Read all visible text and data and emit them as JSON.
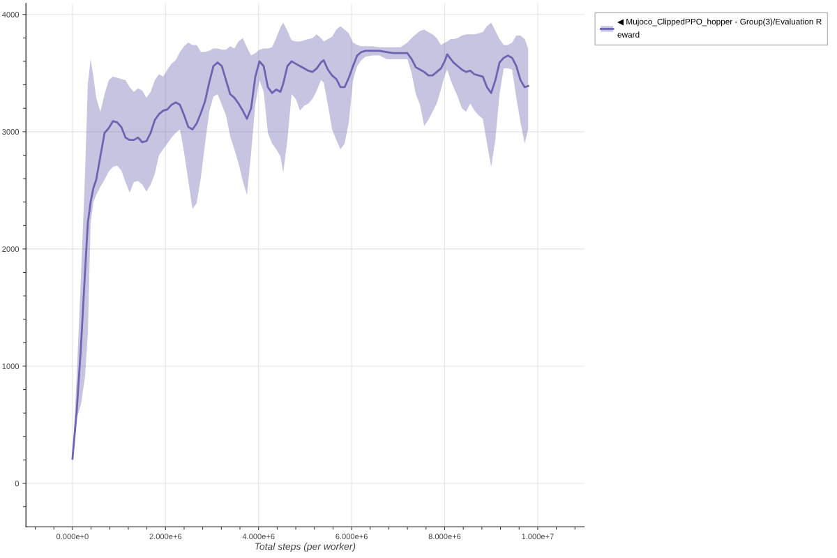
{
  "chart_data": {
    "type": "line",
    "xlabel": "Total steps (per worker)",
    "xlim": [
      -1000000,
      11000000
    ],
    "ylim": [
      -370,
      4095
    ],
    "xticks": [
      {
        "value": 0,
        "label": "0.000e+0"
      },
      {
        "value": 2000000,
        "label": "2.000e+6"
      },
      {
        "value": 4000000,
        "label": "4.000e+6"
      },
      {
        "value": 6000000,
        "label": "6.000e+6"
      },
      {
        "value": 8000000,
        "label": "8.000e+6"
      },
      {
        "value": 10000000,
        "label": "1.000e+7"
      }
    ],
    "yticks": [
      0,
      1000,
      2000,
      3000,
      4000
    ],
    "grid": true,
    "legend": "top right",
    "x": [
      0,
      90000,
      180000,
      270000,
      330000,
      390000,
      450000,
      510000,
      600000,
      690000,
      780000,
      870000,
      960000,
      1050000,
      1140000,
      1230000,
      1320000,
      1410000,
      1500000,
      1590000,
      1680000,
      1770000,
      1860000,
      1950000,
      2040000,
      2130000,
      2220000,
      2310000,
      2400000,
      2490000,
      2580000,
      2670000,
      2760000,
      2850000,
      2940000,
      3030000,
      3120000,
      3210000,
      3300000,
      3390000,
      3480000,
      3570000,
      3660000,
      3750000,
      3840000,
      3930000,
      4020000,
      4110000,
      4200000,
      4290000,
      4380000,
      4470000,
      4530000,
      4620000,
      4710000,
      4800000,
      4890000,
      4980000,
      5070000,
      5160000,
      5250000,
      5340000,
      5400000,
      5490000,
      5580000,
      5670000,
      5760000,
      5850000,
      5940000,
      6030000,
      6120000,
      6210000,
      6300000,
      6450000,
      6600000,
      6750000,
      6900000,
      7050000,
      7200000,
      7290000,
      7380000,
      7470000,
      7560000,
      7650000,
      7740000,
      7830000,
      7920000,
      8010000,
      8055000,
      8130000,
      8190000,
      8280000,
      8370000,
      8460000,
      8550000,
      8640000,
      8730000,
      8820000,
      8910000,
      9000000,
      9090000,
      9180000,
      9270000,
      9360000,
      9450000,
      9540000,
      9630000,
      9720000,
      9795000
    ],
    "series": [
      {
        "name": "◀ Mujoco_ClippedPPO_hopper - Group(3)/Evaluation Reward",
        "color": "#6c64b0",
        "values": [
          210,
          610,
          1150,
          1800,
          2220,
          2400,
          2520,
          2590,
          2790,
          2990,
          3030,
          3090,
          3080,
          3040,
          2950,
          2930,
          2930,
          2950,
          2910,
          2920,
          2990,
          3100,
          3150,
          3180,
          3190,
          3230,
          3250,
          3230,
          3140,
          3040,
          3020,
          3070,
          3160,
          3260,
          3420,
          3560,
          3590,
          3560,
          3440,
          3320,
          3290,
          3240,
          3180,
          3110,
          3200,
          3470,
          3600,
          3560,
          3380,
          3330,
          3360,
          3340,
          3410,
          3560,
          3600,
          3580,
          3560,
          3540,
          3520,
          3510,
          3540,
          3590,
          3610,
          3530,
          3480,
          3450,
          3380,
          3380,
          3460,
          3560,
          3650,
          3680,
          3690,
          3690,
          3690,
          3680,
          3670,
          3670,
          3670,
          3620,
          3550,
          3530,
          3510,
          3480,
          3480,
          3510,
          3540,
          3610,
          3660,
          3620,
          3590,
          3560,
          3530,
          3510,
          3520,
          3490,
          3480,
          3470,
          3380,
          3330,
          3440,
          3590,
          3630,
          3650,
          3630,
          3560,
          3440,
          3380,
          3390
        ],
        "upper": [
          210,
          910,
          1740,
          2640,
          3410,
          3620,
          3470,
          3290,
          3170,
          3320,
          3440,
          3470,
          3460,
          3450,
          3440,
          3380,
          3340,
          3370,
          3350,
          3290,
          3340,
          3440,
          3490,
          3470,
          3530,
          3580,
          3610,
          3680,
          3730,
          3760,
          3740,
          3740,
          3680,
          3680,
          3690,
          3710,
          3710,
          3700,
          3700,
          3730,
          3710,
          3770,
          3800,
          3720,
          3650,
          3670,
          3700,
          3710,
          3710,
          3720,
          3800,
          3890,
          3930,
          3860,
          3780,
          3770,
          3770,
          3780,
          3790,
          3800,
          3830,
          3800,
          3770,
          3790,
          3810,
          3870,
          3900,
          3870,
          3840,
          3760,
          3740,
          3730,
          3730,
          3730,
          3720,
          3720,
          3720,
          3720,
          3760,
          3800,
          3830,
          3860,
          3870,
          3850,
          3830,
          3800,
          3740,
          3760,
          3770,
          3790,
          3790,
          3800,
          3820,
          3830,
          3830,
          3830,
          3840,
          3850,
          3900,
          3930,
          3860,
          3790,
          3740,
          3740,
          3760,
          3820,
          3820,
          3790,
          3710
        ],
        "lower": [
          210,
          550,
          670,
          910,
          1270,
          2220,
          2400,
          2460,
          2530,
          2590,
          2660,
          2700,
          2710,
          2670,
          2570,
          2480,
          2570,
          2580,
          2550,
          2490,
          2550,
          2640,
          2800,
          2850,
          2900,
          2950,
          2990,
          3020,
          2820,
          2580,
          2340,
          2390,
          2610,
          2900,
          3170,
          3300,
          3320,
          3230,
          3140,
          2960,
          2850,
          2730,
          2580,
          2460,
          2820,
          3230,
          3440,
          3340,
          2990,
          2900,
          2850,
          2790,
          2650,
          2930,
          3320,
          3280,
          3180,
          3220,
          3240,
          3280,
          3350,
          3440,
          3420,
          3230,
          3020,
          2930,
          2850,
          2900,
          3080,
          3440,
          3560,
          3610,
          3640,
          3650,
          3650,
          3620,
          3620,
          3620,
          3620,
          3500,
          3320,
          3230,
          3050,
          3100,
          3170,
          3240,
          3360,
          3490,
          3530,
          3440,
          3380,
          3300,
          3200,
          3170,
          3240,
          3180,
          3140,
          3110,
          2900,
          2700,
          2930,
          3320,
          3540,
          3540,
          3530,
          3290,
          3080,
          2900,
          3020
        ]
      }
    ]
  }
}
